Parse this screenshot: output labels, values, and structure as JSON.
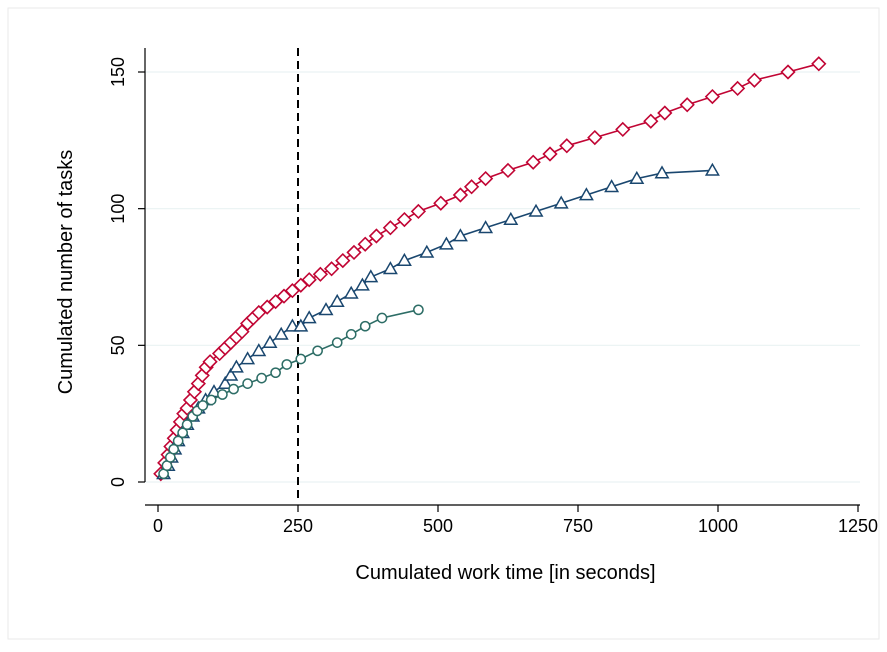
{
  "chart_data": {
    "type": "line",
    "title": "",
    "xlabel": "Cumulated work time [in seconds]",
    "ylabel": "Cumulated number of tasks",
    "xlim": [
      0,
      1250
    ],
    "ylim": [
      0,
      150
    ],
    "xticks": [
      "0",
      "250",
      "500",
      "750",
      "1000",
      "1250"
    ],
    "yticks": [
      "0",
      "50",
      "100",
      "150"
    ],
    "grid": "horizontal",
    "legend": "none",
    "reference_line": {
      "x": 250,
      "style": "dashed",
      "color": "#000000"
    },
    "series": [
      {
        "marker": "diamond",
        "color": "#c10534",
        "points": [
          [
            5,
            3
          ],
          [
            12,
            7
          ],
          [
            18,
            10
          ],
          [
            23,
            13
          ],
          [
            29,
            16
          ],
          [
            34,
            19
          ],
          [
            40,
            22
          ],
          [
            46,
            25
          ],
          [
            52,
            27
          ],
          [
            58,
            30
          ],
          [
            65,
            33
          ],
          [
            72,
            36
          ],
          [
            79,
            39
          ],
          [
            86,
            42
          ],
          [
            93,
            44
          ],
          [
            110,
            47
          ],
          [
            120,
            49
          ],
          [
            130,
            51
          ],
          [
            140,
            53
          ],
          [
            150,
            55
          ],
          [
            160,
            58
          ],
          [
            170,
            60
          ],
          [
            180,
            62
          ],
          [
            195,
            64
          ],
          [
            210,
            66
          ],
          [
            225,
            68
          ],
          [
            240,
            70
          ],
          [
            255,
            72
          ],
          [
            270,
            74
          ],
          [
            290,
            76
          ],
          [
            310,
            78
          ],
          [
            330,
            81
          ],
          [
            350,
            84
          ],
          [
            370,
            87
          ],
          [
            390,
            90
          ],
          [
            415,
            93
          ],
          [
            440,
            96
          ],
          [
            465,
            99
          ],
          [
            505,
            102
          ],
          [
            540,
            105
          ],
          [
            560,
            108
          ],
          [
            585,
            111
          ],
          [
            625,
            114
          ],
          [
            670,
            117
          ],
          [
            700,
            120
          ],
          [
            730,
            123
          ],
          [
            780,
            126
          ],
          [
            830,
            129
          ],
          [
            880,
            132
          ],
          [
            905,
            135
          ],
          [
            945,
            138
          ],
          [
            990,
            141
          ],
          [
            1035,
            144
          ],
          [
            1065,
            147
          ],
          [
            1125,
            150
          ],
          [
            1180,
            153
          ]
        ]
      },
      {
        "marker": "triangle",
        "color": "#1a476f",
        "points": [
          [
            10,
            3
          ],
          [
            18,
            6
          ],
          [
            24,
            9
          ],
          [
            30,
            12
          ],
          [
            36,
            15
          ],
          [
            44,
            18
          ],
          [
            52,
            21
          ],
          [
            62,
            24
          ],
          [
            72,
            27
          ],
          [
            85,
            30
          ],
          [
            100,
            33
          ],
          [
            120,
            36
          ],
          [
            130,
            39
          ],
          [
            140,
            42
          ],
          [
            160,
            45
          ],
          [
            180,
            48
          ],
          [
            200,
            51
          ],
          [
            220,
            54
          ],
          [
            240,
            57
          ],
          [
            255,
            57
          ],
          [
            270,
            60
          ],
          [
            300,
            63
          ],
          [
            320,
            66
          ],
          [
            345,
            69
          ],
          [
            365,
            72
          ],
          [
            380,
            75
          ],
          [
            415,
            78
          ],
          [
            440,
            81
          ],
          [
            480,
            84
          ],
          [
            515,
            87
          ],
          [
            540,
            90
          ],
          [
            585,
            93
          ],
          [
            630,
            96
          ],
          [
            675,
            99
          ],
          [
            720,
            102
          ],
          [
            765,
            105
          ],
          [
            810,
            108
          ],
          [
            855,
            111
          ],
          [
            900,
            113
          ],
          [
            990,
            114
          ]
        ]
      },
      {
        "marker": "circle",
        "color": "#2d6d66",
        "points": [
          [
            10,
            3
          ],
          [
            16,
            6
          ],
          [
            22,
            9
          ],
          [
            28,
            12
          ],
          [
            36,
            15
          ],
          [
            44,
            18
          ],
          [
            52,
            21
          ],
          [
            62,
            24
          ],
          [
            70,
            26
          ],
          [
            80,
            28
          ],
          [
            95,
            30
          ],
          [
            115,
            32
          ],
          [
            135,
            34
          ],
          [
            160,
            36
          ],
          [
            185,
            38
          ],
          [
            210,
            40
          ],
          [
            230,
            43
          ],
          [
            255,
            45
          ],
          [
            285,
            48
          ],
          [
            320,
            51
          ],
          [
            345,
            54
          ],
          [
            370,
            57
          ],
          [
            400,
            60
          ],
          [
            465,
            63
          ]
        ]
      }
    ]
  }
}
